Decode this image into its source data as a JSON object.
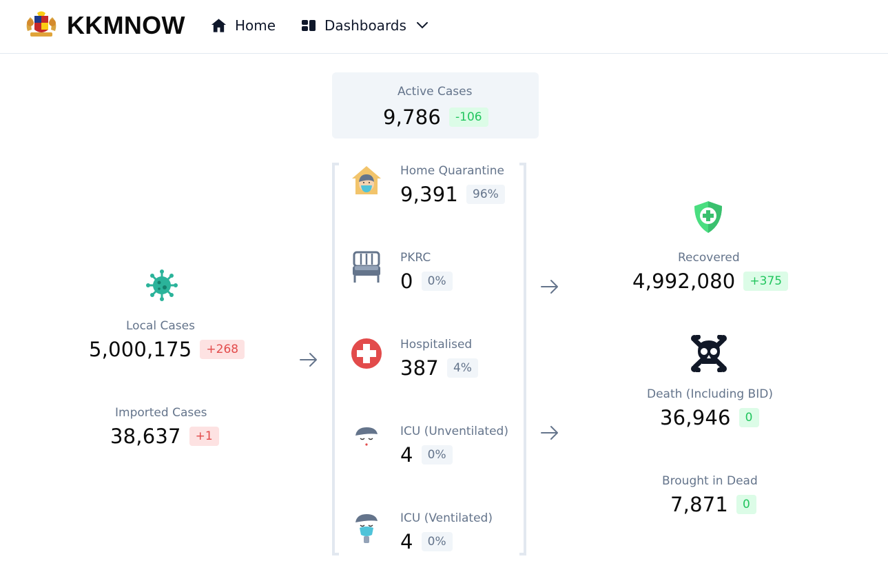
{
  "header": {
    "brand": "KKMNOW",
    "nav": {
      "home_label": "Home",
      "dashboards_label": "Dashboards"
    }
  },
  "active": {
    "label": "Active Cases",
    "value": "9,786",
    "delta": "-106"
  },
  "left": {
    "local": {
      "label": "Local Cases",
      "value": "5,000,175",
      "delta": "+268"
    },
    "imported": {
      "label": "Imported Cases",
      "value": "38,637",
      "delta": "+1"
    }
  },
  "middle": {
    "home_quarantine": {
      "label": "Home Quarantine",
      "value": "9,391",
      "pct": "96%"
    },
    "pkrc": {
      "label": "PKRC",
      "value": "0",
      "pct": "0%"
    },
    "hospitalised": {
      "label": "Hospitalised",
      "value": "387",
      "pct": "4%"
    },
    "icu_unventilated": {
      "label": "ICU (Unventilated)",
      "value": "4",
      "pct": "0%"
    },
    "icu_ventilated": {
      "label": "ICU (Ventilated)",
      "value": "4",
      "pct": "0%"
    }
  },
  "right": {
    "recovered": {
      "label": "Recovered",
      "value": "4,992,080",
      "delta": "+375"
    },
    "death": {
      "label": "Death (Including BID)",
      "value": "36,946",
      "delta": "0"
    },
    "bid": {
      "label": "Brought in Dead",
      "value": "7,871",
      "delta": "0"
    }
  },
  "colors": {
    "red_badge_bg": "#fde2e2",
    "red_badge_text": "#e24b4b",
    "green_badge_bg": "#dcfce7",
    "green_badge_text": "#22c55e",
    "label_gray": "#64748b",
    "bracket": "#e2e8f0"
  },
  "icons": {
    "logo": "malaysia-coat-of-arms-icon",
    "home": "home-icon",
    "dashboards": "dashboards-icon",
    "chevron": "chevron-down-icon",
    "virus": "virus-icon",
    "house": "home-quarantine-icon",
    "bed": "bed-icon",
    "hospital": "hospital-cross-icon",
    "icu_unvent": "icu-unventilated-icon",
    "icu_vent": "icu-ventilated-icon",
    "shield": "shield-cross-icon",
    "skull": "skull-crossbones-icon",
    "arrow": "arrow-right-icon"
  }
}
